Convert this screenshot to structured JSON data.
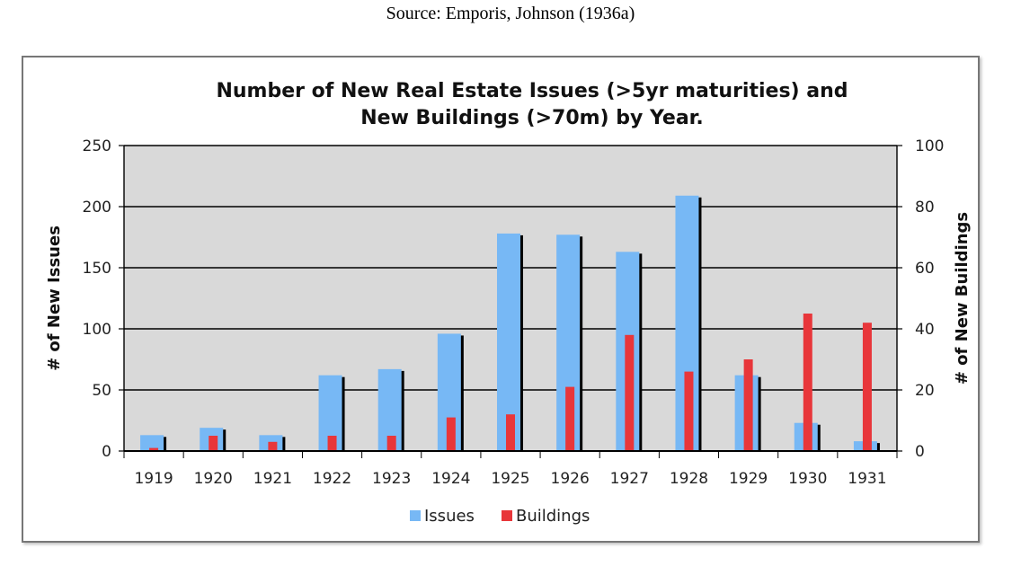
{
  "source_caption": "Source: Emporis, Johnson (1936a)",
  "chart_data": {
    "type": "bar",
    "title_line1": "Number of New Real Estate Issues (>5yr maturities) and",
    "title_line2": "New Buildings (>70m) by Year.",
    "categories": [
      "1919",
      "1920",
      "1921",
      "1922",
      "1923",
      "1924",
      "1925",
      "1926",
      "1927",
      "1928",
      "1929",
      "1930",
      "1931"
    ],
    "series": [
      {
        "name": "Issues",
        "axis": "left",
        "color": "#77b8f5",
        "values": [
          13,
          19,
          13,
          62,
          67,
          96,
          178,
          177,
          163,
          209,
          62,
          23,
          8
        ]
      },
      {
        "name": "Buildings",
        "axis": "right",
        "color": "#e8363a",
        "values": [
          1,
          5,
          3,
          5,
          5,
          11,
          12,
          21,
          38,
          26,
          30,
          45,
          42
        ]
      }
    ],
    "ylabel_left": "# of New Issues",
    "ylabel_right": "# of New Buildings",
    "ylim_left": [
      0,
      250
    ],
    "ylim_right": [
      0,
      100
    ],
    "yticks_left": [
      "0",
      "50",
      "100",
      "150",
      "200",
      "250"
    ],
    "yticks_right": [
      "0",
      "20",
      "40",
      "60",
      "80",
      "100"
    ],
    "grid": true,
    "plot_background": "#d9d9d9",
    "legend_position": "bottom"
  }
}
